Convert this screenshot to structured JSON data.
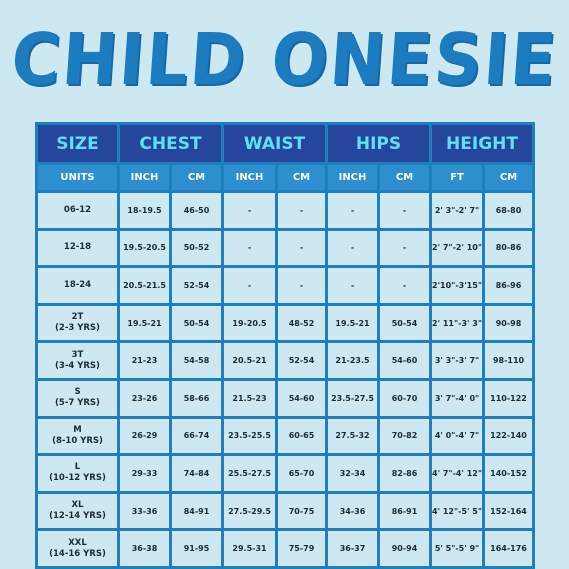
{
  "title": "CHILD ONESIE",
  "headers": {
    "size": "SIZE",
    "chest": "CHEST",
    "waist": "WAIST",
    "hips": "HIPS",
    "height": "HEIGHT"
  },
  "units": [
    "UNITS",
    "INCH",
    "CM",
    "INCH",
    "CM",
    "INCH",
    "CM",
    "FT",
    "CM"
  ],
  "rows": [
    {
      "size": "06-12",
      "cells": [
        "18-19.5",
        "46-50",
        "-",
        "-",
        "-",
        "-",
        "2' 3\"-2' 7\"",
        "68-80"
      ]
    },
    {
      "size": "12-18",
      "cells": [
        "19.5-20.5",
        "50-52",
        "-",
        "-",
        "-",
        "-",
        "2' 7\"-2' 10\"",
        "80-86"
      ]
    },
    {
      "size": "18-24",
      "cells": [
        "20.5-21.5",
        "52-54",
        "-",
        "-",
        "-",
        "-",
        "2'10\"-3'15\"",
        "86-96"
      ]
    },
    {
      "size": "2T\n(2-3 YRS)",
      "cells": [
        "19.5-21",
        "50-54",
        "19-20.5",
        "48-52",
        "19.5-21",
        "50-54",
        "2' 11\"-3' 3\"",
        "90-98"
      ]
    },
    {
      "size": "3T\n(3-4 YRS)",
      "cells": [
        "21-23",
        "54-58",
        "20.5-21",
        "52-54",
        "21-23.5",
        "54-60",
        "3' 3\"-3' 7\"",
        "98-110"
      ]
    },
    {
      "size": "S\n(5-7 YRS)",
      "cells": [
        "23-26",
        "58-66",
        "21.5-23",
        "54-60",
        "23.5-27.5",
        "60-70",
        "3' 7\"-4' 0\"",
        "110-122"
      ]
    },
    {
      "size": "M\n(8-10 YRS)",
      "cells": [
        "26-29",
        "66-74",
        "23.5-25.5",
        "60-65",
        "27.5-32",
        "70-82",
        "4' 0\"-4' 7\"",
        "122-140"
      ]
    },
    {
      "size": "L\n(10-12 YRS)",
      "cells": [
        "29-33",
        "74-84",
        "25.5-27.5",
        "65-70",
        "32-34",
        "82-86",
        "4' 7\"-4' 12\"",
        "140-152"
      ]
    },
    {
      "size": "XL\n(12-14 YRS)",
      "cells": [
        "33-36",
        "84-91",
        "27.5-29.5",
        "70-75",
        "34-36",
        "86-91",
        "4' 12\"-5' 5\"",
        "152-164"
      ]
    },
    {
      "size": "XXL\n(14-16 YRS)",
      "cells": [
        "36-38",
        "91-95",
        "29.5-31",
        "75-79",
        "36-37",
        "90-94",
        "5' 5\"-5' 9\"",
        "164-176"
      ]
    }
  ],
  "colors": {
    "background": "#cde8f0",
    "title": "#1d7bbf",
    "header_bg": "#25469c",
    "header_text": "#5fe0f0",
    "units_bg": "#2d8fd0",
    "grid": "#1f7fbd"
  }
}
